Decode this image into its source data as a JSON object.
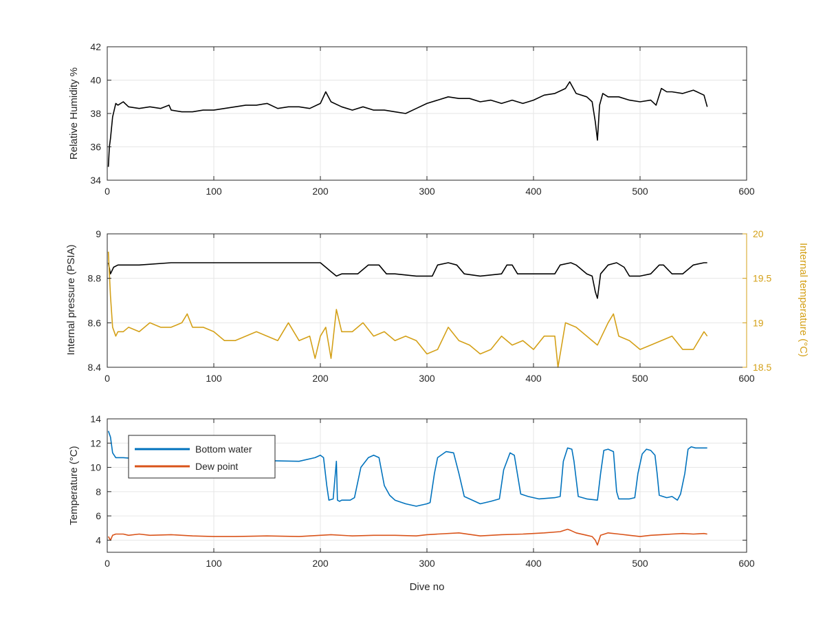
{
  "chart_data": [
    {
      "type": "line",
      "xlabel": "",
      "ylabel": "Relative Humidity %",
      "xlim": [
        0,
        600
      ],
      "ylim": [
        34,
        42
      ],
      "xticks": [
        0,
        100,
        200,
        300,
        400,
        500,
        600
      ],
      "yticks": [
        34,
        36,
        38,
        40,
        42
      ],
      "grid": true,
      "series": [
        {
          "color": "#000000",
          "x": [
            1,
            2,
            3,
            5,
            8,
            10,
            15,
            20,
            30,
            40,
            50,
            58,
            60,
            70,
            80,
            90,
            100,
            110,
            120,
            130,
            140,
            150,
            160,
            170,
            180,
            190,
            200,
            205,
            210,
            220,
            230,
            240,
            250,
            260,
            270,
            280,
            290,
            300,
            310,
            320,
            330,
            340,
            350,
            360,
            370,
            380,
            390,
            400,
            410,
            420,
            430,
            434,
            440,
            450,
            455,
            458,
            460,
            462,
            465,
            470,
            480,
            490,
            500,
            510,
            515,
            520,
            525,
            530,
            540,
            550,
            560,
            563
          ],
          "y": [
            34.8,
            36.0,
            36.5,
            37.8,
            38.6,
            38.5,
            38.7,
            38.4,
            38.3,
            38.4,
            38.3,
            38.5,
            38.2,
            38.1,
            38.1,
            38.2,
            38.2,
            38.3,
            38.4,
            38.5,
            38.5,
            38.6,
            38.3,
            38.4,
            38.4,
            38.3,
            38.6,
            39.3,
            38.7,
            38.4,
            38.2,
            38.4,
            38.2,
            38.2,
            38.1,
            38.0,
            38.3,
            38.6,
            38.8,
            39.0,
            38.9,
            38.9,
            38.7,
            38.8,
            38.6,
            38.8,
            38.6,
            38.8,
            39.1,
            39.2,
            39.5,
            39.9,
            39.2,
            39.0,
            38.7,
            37.5,
            36.4,
            38.5,
            39.2,
            39.0,
            39.0,
            38.8,
            38.7,
            38.8,
            38.5,
            39.5,
            39.3,
            39.3,
            39.2,
            39.4,
            39.1,
            38.4
          ]
        }
      ]
    },
    {
      "type": "line",
      "xlabel": "",
      "ylabel": "Internal pressure (PSIA)",
      "y2label": "Internal temperature (°C)",
      "xlim": [
        0,
        600
      ],
      "ylim": [
        8.4,
        9
      ],
      "y2lim": [
        18.5,
        20
      ],
      "xticks": [
        0,
        100,
        200,
        300,
        400,
        500,
        600
      ],
      "yticks": [
        8.4,
        8.6,
        8.8,
        9
      ],
      "y2ticks": [
        18.5,
        19,
        19.5,
        20
      ],
      "grid": true,
      "series": [
        {
          "axis": "left",
          "color": "#000000",
          "x": [
            1,
            3,
            6,
            10,
            30,
            60,
            100,
            150,
            190,
            200,
            205,
            210,
            215,
            220,
            235,
            245,
            255,
            262,
            270,
            290,
            305,
            310,
            320,
            328,
            335,
            350,
            370,
            375,
            380,
            385,
            400,
            420,
            425,
            435,
            440,
            450,
            455,
            458,
            460,
            463,
            470,
            478,
            485,
            490,
            500,
            510,
            518,
            522,
            530,
            540,
            550,
            560,
            563
          ],
          "y": [
            8.87,
            8.82,
            8.85,
            8.86,
            8.86,
            8.87,
            8.87,
            8.87,
            8.87,
            8.87,
            8.85,
            8.83,
            8.81,
            8.82,
            8.82,
            8.86,
            8.86,
            8.82,
            8.82,
            8.81,
            8.81,
            8.86,
            8.87,
            8.86,
            8.82,
            8.81,
            8.82,
            8.86,
            8.86,
            8.82,
            8.82,
            8.82,
            8.86,
            8.87,
            8.86,
            8.82,
            8.81,
            8.74,
            8.71,
            8.82,
            8.86,
            8.87,
            8.85,
            8.81,
            8.81,
            8.82,
            8.86,
            8.86,
            8.82,
            8.82,
            8.86,
            8.87,
            8.87
          ]
        },
        {
          "axis": "right",
          "color": "#D4A017",
          "x": [
            1,
            3,
            5,
            8,
            10,
            15,
            20,
            30,
            40,
            50,
            60,
            70,
            75,
            80,
            90,
            100,
            110,
            120,
            130,
            140,
            150,
            160,
            170,
            180,
            190,
            195,
            200,
            205,
            210,
            215,
            220,
            230,
            240,
            250,
            260,
            270,
            280,
            290,
            300,
            310,
            320,
            330,
            340,
            350,
            360,
            370,
            380,
            390,
            400,
            410,
            420,
            423,
            430,
            440,
            450,
            460,
            470,
            475,
            480,
            490,
            500,
            510,
            520,
            530,
            540,
            550,
            560,
            563
          ],
          "y": [
            19.8,
            19.3,
            18.95,
            18.85,
            18.9,
            18.9,
            18.95,
            18.9,
            19.0,
            18.95,
            18.95,
            19.0,
            19.1,
            18.95,
            18.95,
            18.9,
            18.8,
            18.8,
            18.85,
            18.9,
            18.85,
            18.8,
            19.0,
            18.8,
            18.85,
            18.6,
            18.85,
            18.95,
            18.6,
            19.15,
            18.9,
            18.9,
            19.0,
            18.85,
            18.9,
            18.8,
            18.85,
            18.8,
            18.65,
            18.7,
            18.95,
            18.8,
            18.75,
            18.65,
            18.7,
            18.85,
            18.75,
            18.8,
            18.7,
            18.85,
            18.85,
            18.5,
            19.0,
            18.95,
            18.85,
            18.75,
            19.0,
            19.1,
            18.85,
            18.8,
            18.7,
            18.75,
            18.8,
            18.85,
            18.7,
            18.7,
            18.9,
            18.85
          ]
        }
      ]
    },
    {
      "type": "line",
      "xlabel": "Dive no",
      "ylabel": "Temperature (°C)",
      "xlim": [
        0,
        600
      ],
      "ylim": [
        3,
        14
      ],
      "xticks": [
        0,
        100,
        200,
        300,
        400,
        500,
        600
      ],
      "yticks": [
        4,
        6,
        8,
        10,
        12,
        14
      ],
      "grid": true,
      "legend_position": "top-left",
      "series": [
        {
          "name": "Bottom water",
          "color": "#0072BD",
          "x": [
            1,
            3,
            5,
            8,
            15,
            30,
            60,
            100,
            150,
            180,
            195,
            200,
            203,
            206,
            208,
            212,
            215,
            216,
            218,
            220,
            228,
            232,
            238,
            245,
            250,
            255,
            260,
            265,
            270,
            280,
            290,
            300,
            303,
            307,
            310,
            318,
            325,
            330,
            335,
            340,
            350,
            360,
            368,
            372,
            378,
            382,
            388,
            395,
            405,
            420,
            425,
            428,
            432,
            436,
            438,
            442,
            450,
            460,
            463,
            466,
            470,
            475,
            478,
            480,
            482,
            490,
            495,
            498,
            502,
            506,
            510,
            514,
            516,
            518,
            525,
            530,
            535,
            538,
            542,
            545,
            548,
            552,
            556,
            560,
            563
          ],
          "y": [
            13.0,
            12.5,
            11.2,
            10.8,
            10.8,
            10.7,
            10.6,
            10.6,
            10.55,
            10.5,
            10.8,
            11.0,
            10.8,
            8.5,
            7.3,
            7.4,
            10.5,
            7.3,
            7.2,
            7.3,
            7.3,
            7.5,
            10.0,
            10.8,
            11.0,
            10.8,
            8.5,
            7.7,
            7.3,
            7.0,
            6.8,
            7.0,
            7.1,
            9.5,
            10.8,
            11.3,
            11.2,
            9.5,
            7.6,
            7.4,
            7.0,
            7.2,
            7.4,
            9.8,
            11.2,
            11.0,
            7.8,
            7.6,
            7.4,
            7.5,
            7.6,
            10.5,
            11.6,
            11.5,
            10.5,
            7.6,
            7.4,
            7.3,
            9.5,
            11.4,
            11.5,
            11.3,
            8.0,
            7.4,
            7.4,
            7.4,
            7.5,
            9.5,
            11.1,
            11.5,
            11.4,
            11.0,
            9.5,
            7.7,
            7.5,
            7.6,
            7.3,
            7.8,
            9.5,
            11.5,
            11.7,
            11.6,
            11.6,
            11.6,
            11.6
          ]
        },
        {
          "name": "Dew point",
          "color": "#D95319",
          "x": [
            1,
            3,
            5,
            8,
            15,
            20,
            30,
            40,
            60,
            80,
            100,
            120,
            150,
            180,
            200,
            210,
            230,
            250,
            270,
            290,
            300,
            310,
            330,
            350,
            370,
            390,
            410,
            425,
            432,
            435,
            440,
            450,
            455,
            458,
            460,
            463,
            470,
            480,
            490,
            500,
            510,
            520,
            530,
            540,
            550,
            560,
            563
          ],
          "y": [
            4.3,
            4.0,
            4.4,
            4.5,
            4.5,
            4.4,
            4.5,
            4.4,
            4.45,
            4.35,
            4.3,
            4.3,
            4.35,
            4.3,
            4.4,
            4.45,
            4.35,
            4.4,
            4.4,
            4.35,
            4.45,
            4.5,
            4.6,
            4.35,
            4.45,
            4.5,
            4.6,
            4.7,
            4.9,
            4.8,
            4.6,
            4.4,
            4.3,
            4.0,
            3.6,
            4.4,
            4.6,
            4.5,
            4.4,
            4.3,
            4.4,
            4.45,
            4.5,
            4.55,
            4.5,
            4.55,
            4.5
          ]
        }
      ]
    }
  ]
}
